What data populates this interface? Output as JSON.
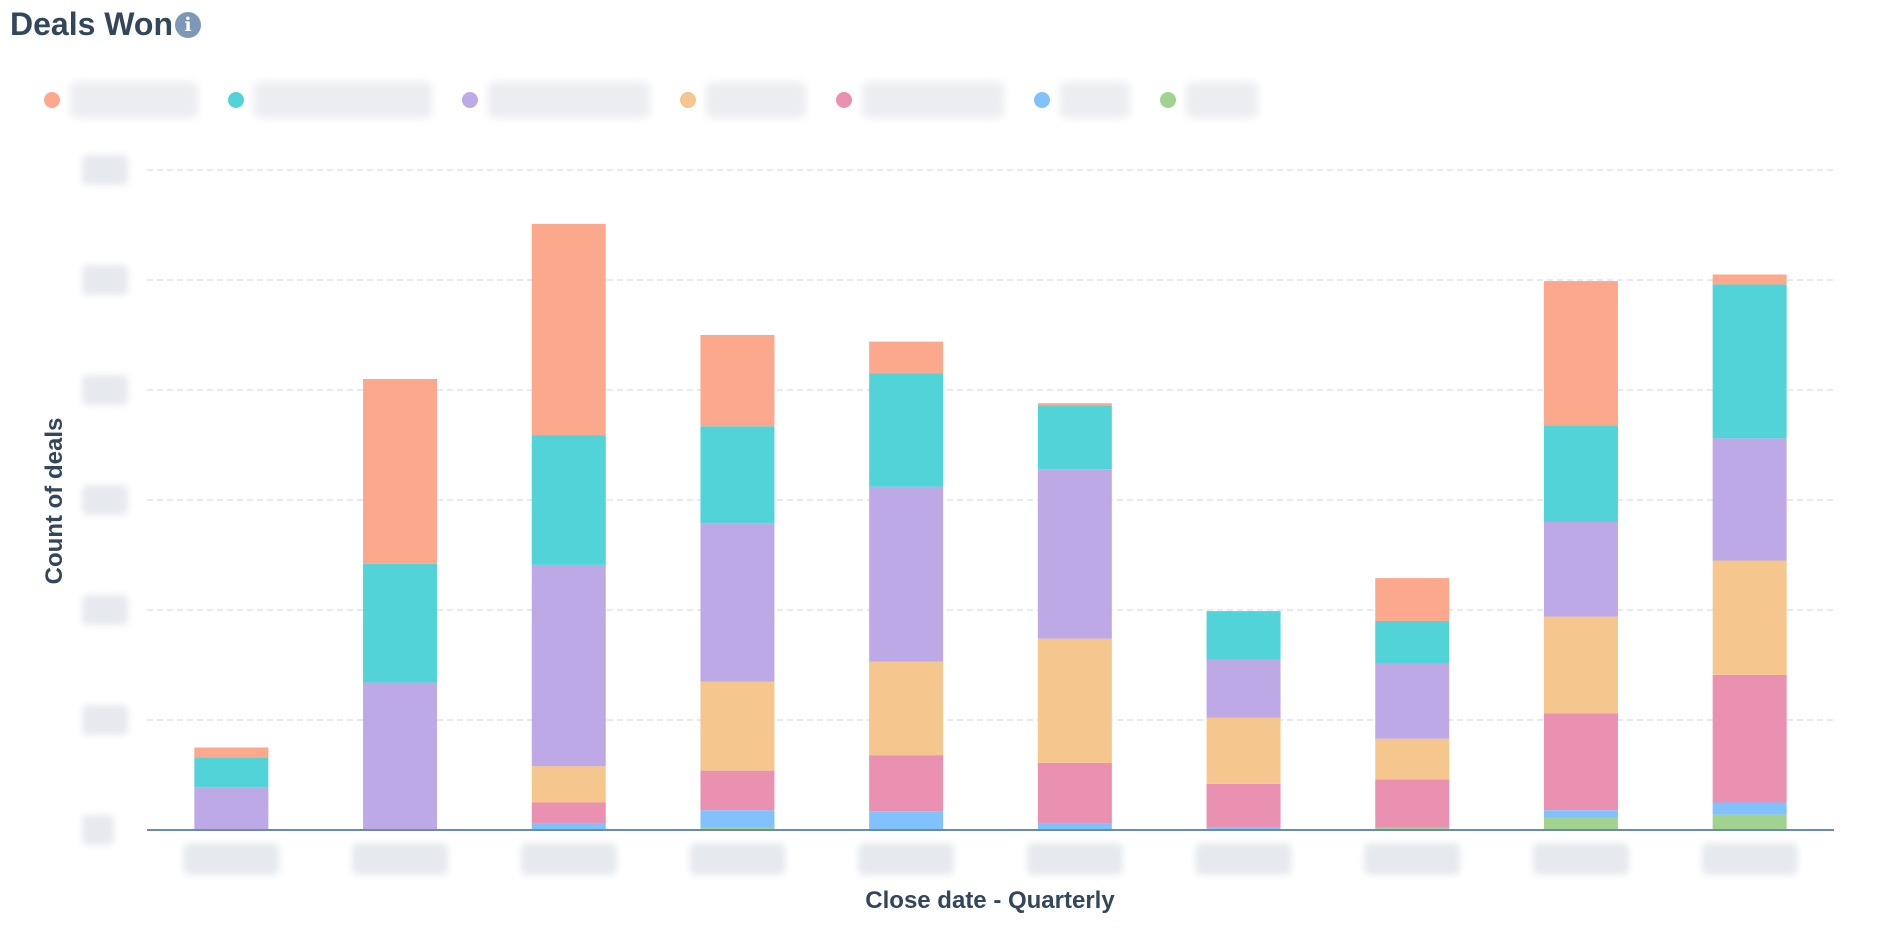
{
  "header": {
    "title": "Deals Won",
    "info_icon": "info-icon"
  },
  "legend": {
    "items": [
      {
        "color": "#fca88d"
      },
      {
        "color": "#52d3d8"
      },
      {
        "color": "#bda9e6"
      },
      {
        "color": "#f5c78e"
      },
      {
        "color": "#ea90b1"
      },
      {
        "color": "#81c1fd"
      },
      {
        "color": "#a2d28f"
      }
    ]
  },
  "chart_data": {
    "type": "bar",
    "stacked": true,
    "xlabel": "Close date - Quarterly",
    "ylabel": "Count of deals",
    "ylim": [
      0,
      60
    ],
    "grid": true,
    "legend_position": "top-left",
    "tick_labels_obscured": true,
    "colors": [
      "#fca88d",
      "#52d3d8",
      "#bda9e6",
      "#f5c78e",
      "#ea90b1",
      "#81c1fd",
      "#a2d28f"
    ],
    "series": [
      {
        "values": [
          0.9,
          16.8,
          19.2,
          8.3,
          2.9,
          0.2,
          0,
          3.9,
          13.1,
          0.9
        ]
      },
      {
        "values": [
          2.7,
          10.8,
          11.8,
          8.8,
          10.3,
          5.8,
          4.4,
          3.9,
          8.8,
          14.0
        ]
      },
      {
        "values": [
          3.9,
          13.4,
          18.3,
          14.4,
          15.9,
          15.4,
          5.3,
          6.8,
          8.6,
          11.1
        ]
      },
      {
        "values": [
          0,
          0,
          3.3,
          8.1,
          8.5,
          11.3,
          6.0,
          3.7,
          8.8,
          10.4
        ]
      },
      {
        "values": [
          0,
          0,
          1.9,
          3.6,
          5.1,
          5.5,
          4.0,
          4.4,
          8.8,
          11.6
        ]
      },
      {
        "values": [
          0,
          0,
          0.6,
          1.6,
          1.7,
          0.6,
          0.2,
          0,
          0.7,
          1.1
        ]
      },
      {
        "values": [
          0,
          0,
          0,
          0.2,
          0,
          0,
          0,
          0.2,
          1.1,
          1.4
        ]
      }
    ]
  }
}
